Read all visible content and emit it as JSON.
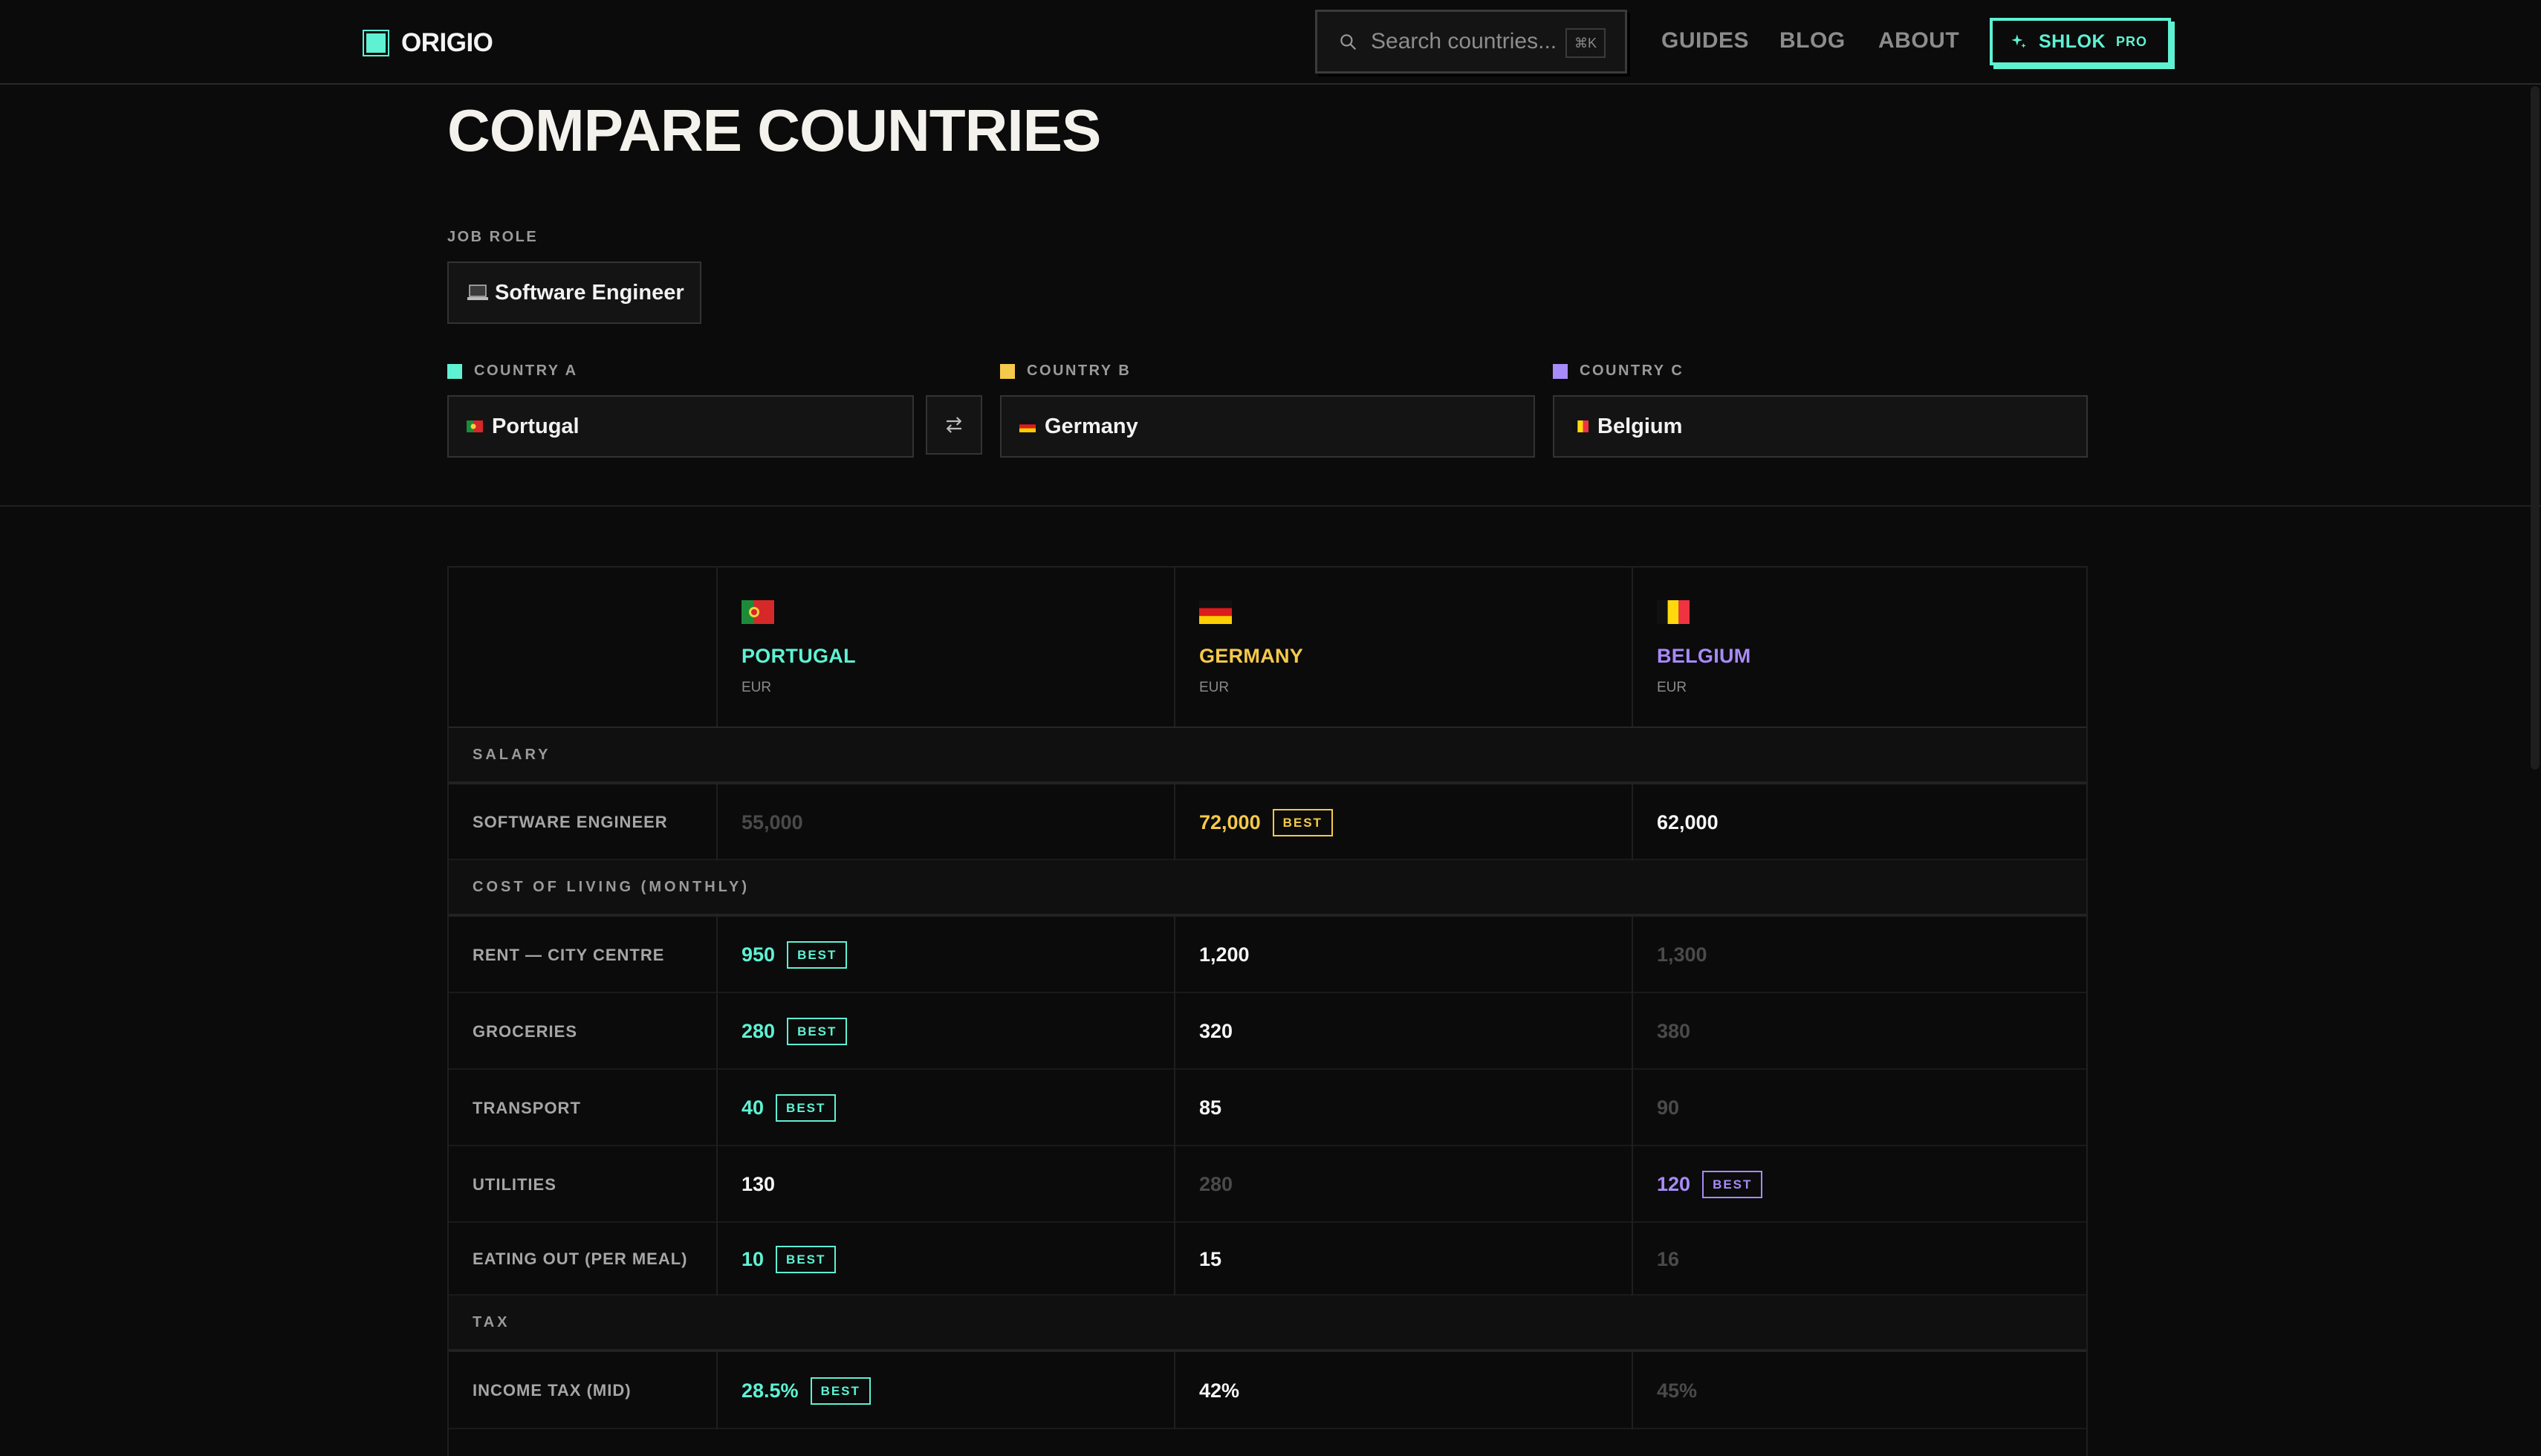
{
  "header": {
    "logo_text": "ORIGIO",
    "search_placeholder": "Search countries...",
    "search_shortcut": "⌘K",
    "nav": [
      "GUIDES",
      "BLOG",
      "ABOUT"
    ],
    "pro_button": {
      "name": "SHLOK",
      "tag": "PRO"
    }
  },
  "title": "COMPARE COUNTRIES",
  "job_role": {
    "label": "JOB ROLE",
    "value": "Software Engineer"
  },
  "countries": [
    {
      "slot_label": "COUNTRY A",
      "name": "Portugal",
      "upper": "PORTUGAL",
      "currency": "EUR",
      "color": "#5ef2d3"
    },
    {
      "slot_label": "COUNTRY B",
      "name": "Germany",
      "upper": "GERMANY",
      "currency": "EUR",
      "color": "#f5c94a"
    },
    {
      "slot_label": "COUNTRY C",
      "name": "Belgium",
      "upper": "BELGIUM",
      "currency": "EUR",
      "color": "#a78bfa"
    }
  ],
  "best_label": "BEST",
  "sections": [
    {
      "title": "SALARY"
    },
    {
      "title": "COST OF LIVING (MONTHLY)"
    },
    {
      "title": "TAX"
    }
  ],
  "rows": [
    {
      "label": "SOFTWARE ENGINEER",
      "values": [
        "55,000",
        "72,000",
        "62,000"
      ],
      "rank": [
        "worst",
        "best",
        "mid"
      ]
    },
    {
      "label": "RENT — CITY CENTRE",
      "values": [
        "950",
        "1,200",
        "1,300"
      ],
      "rank": [
        "best",
        "mid",
        "worst"
      ]
    },
    {
      "label": "GROCERIES",
      "values": [
        "280",
        "320",
        "380"
      ],
      "rank": [
        "best",
        "mid",
        "worst"
      ]
    },
    {
      "label": "TRANSPORT",
      "values": [
        "40",
        "85",
        "90"
      ],
      "rank": [
        "best",
        "mid",
        "worst"
      ]
    },
    {
      "label": "UTILITIES",
      "values": [
        "130",
        "280",
        "120"
      ],
      "rank": [
        "mid",
        "worst",
        "best"
      ]
    },
    {
      "label": "EATING OUT (PER MEAL)",
      "values": [
        "10",
        "15",
        "16"
      ],
      "rank": [
        "best",
        "mid",
        "worst"
      ]
    },
    {
      "label": "INCOME TAX (MID)",
      "values": [
        "28.5%",
        "42%",
        "45%"
      ],
      "rank": [
        "best",
        "mid",
        "worst"
      ]
    }
  ]
}
